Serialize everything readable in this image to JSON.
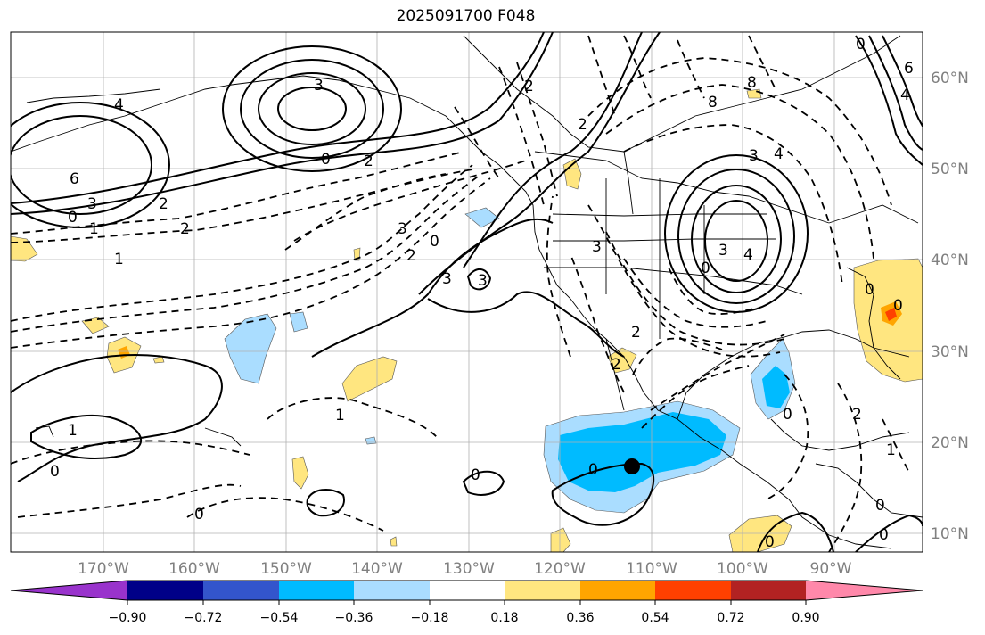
{
  "title": "2025091700 F048",
  "lon_labels": [
    "170°W",
    "160°W",
    "150°W",
    "140°W",
    "130°W",
    "120°W",
    "110°W",
    "100°W",
    "90°W"
  ],
  "lat_labels": [
    "60°N",
    "50°N",
    "40°N",
    "30°N",
    "20°N",
    "10°N"
  ],
  "colorbar": {
    "colors": [
      "#9933cc",
      "#000088",
      "#3355cc",
      "#00bbff",
      "#aaddff",
      "#ffffff",
      "#ffe680",
      "#ffa500",
      "#ff4000",
      "#b22222",
      "#ff88aa"
    ],
    "ticks": [
      "−0.90",
      "−0.72",
      "−0.54",
      "−0.36",
      "−0.18",
      "0.18",
      "0.36",
      "0.54",
      "0.72",
      "0.90"
    ]
  },
  "contour_labels": [
    "3",
    "4",
    "6",
    "3",
    "0",
    "0",
    "2",
    "2",
    "1",
    "1",
    "2",
    "3",
    "2",
    "0",
    "3",
    "3",
    "2",
    "2",
    "1",
    "0",
    "0",
    "1",
    "0",
    "8",
    "8",
    "4",
    "3",
    "4",
    "3",
    "3",
    "0",
    "0",
    "2",
    "2",
    "0",
    "2",
    "0",
    "0",
    "0",
    "1",
    "0",
    "0",
    "0",
    "4",
    "6"
  ],
  "colors": {
    "strong_neg": "#00bbff",
    "weak_neg": "#aaddff",
    "weak_pos": "#ffe680",
    "mid_pos": "#ffa500",
    "strong_pos": "#ff4000"
  }
}
